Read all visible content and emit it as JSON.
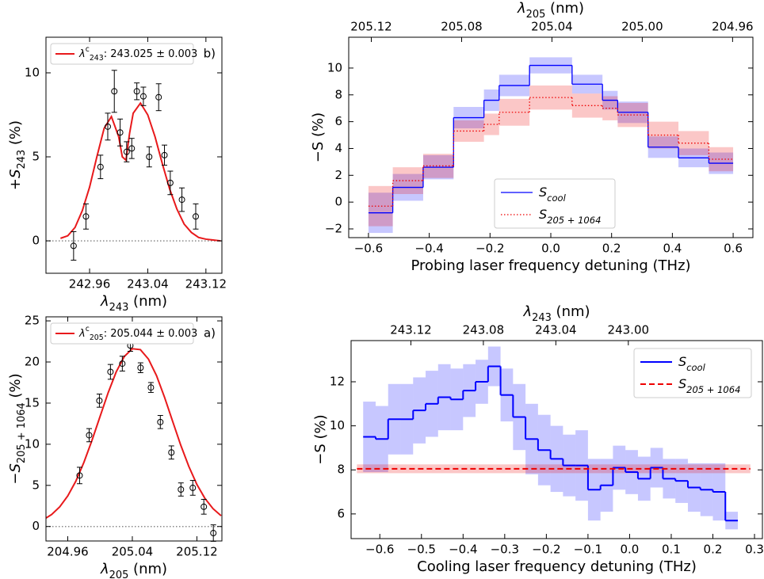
{
  "chart_data": [
    {
      "type": "scatter_fit",
      "panel_label": "b)",
      "xlabel": [
        {
          "text": "λ",
          "italic": true
        },
        {
          "text": "243",
          "shift": "sub"
        },
        {
          "text": " (nm)"
        }
      ],
      "ylabel": [
        {
          "text": "+"
        },
        {
          "text": "S",
          "italic": true
        },
        {
          "text": "243",
          "shift": "sub"
        },
        {
          "text": " (%)"
        }
      ],
      "xlim": [
        242.9,
        243.142
      ],
      "ylim": [
        -1.93,
        12.12
      ],
      "xticks": [
        242.96,
        243.04,
        243.12
      ],
      "yticks": [
        0,
        5,
        10
      ],
      "zero_line": true,
      "legend": "upper left",
      "points": {
        "color": "#000000",
        "x": [
          242.938,
          242.955,
          242.975,
          242.985,
          242.994,
          243.002,
          243.011,
          243.018,
          243.025,
          243.034,
          243.042,
          243.055,
          243.063,
          243.071,
          243.087,
          243.106
        ],
        "values": [
          -0.3,
          1.45,
          4.4,
          6.8,
          8.9,
          6.45,
          5.3,
          5.5,
          8.9,
          8.6,
          5.0,
          8.55,
          5.1,
          3.45,
          2.45,
          1.45
        ],
        "errors": [
          0.85,
          0.75,
          0.7,
          0.8,
          1.25,
          0.8,
          0.6,
          0.6,
          0.5,
          0.55,
          0.6,
          0.8,
          0.6,
          0.7,
          0.7,
          0.75
        ]
      },
      "fit": {
        "color": "#e8191b",
        "name": [
          {
            "text": "λ",
            "italic": true
          },
          {
            "text": "c",
            "shift": "super"
          },
          {
            "text": "243",
            "shift": "sub"
          },
          {
            "text": ": 243.025 ± 0.003"
          }
        ],
        "x": [
          242.92,
          242.93,
          242.94,
          242.95,
          242.96,
          242.97,
          242.98,
          242.99,
          243.0,
          243.005,
          243.01,
          243.015,
          243.02,
          243.03,
          243.04,
          243.05,
          243.06,
          243.07,
          243.08,
          243.09,
          243.1,
          243.11,
          243.12,
          243.13,
          243.14
        ],
        "values": [
          0.15,
          0.3,
          0.8,
          1.8,
          3.2,
          5.0,
          6.7,
          7.4,
          6.2,
          5.0,
          4.8,
          6.4,
          7.6,
          8.2,
          7.5,
          6.2,
          4.6,
          3.1,
          1.9,
          1.0,
          0.5,
          0.2,
          0.1,
          0.05,
          0.0
        ]
      }
    },
    {
      "type": "scatter_fit",
      "panel_label": "a)",
      "xlabel": [
        {
          "text": "λ",
          "italic": true
        },
        {
          "text": "205",
          "shift": "sub"
        },
        {
          "text": " (nm)"
        }
      ],
      "ylabel": [
        {
          "text": "−"
        },
        {
          "text": "S",
          "italic": true
        },
        {
          "text": "205 + 1064",
          "shift": "sub"
        },
        {
          "text": " (%)"
        }
      ],
      "xlim": [
        204.933,
        205.151
      ],
      "ylim": [
        -1.76,
        25.49
      ],
      "xticks": [
        204.96,
        205.04,
        205.12
      ],
      "yticks": [
        0,
        5,
        10,
        15,
        20,
        25
      ],
      "zero_line": true,
      "legend": "upper left",
      "points": {
        "color": "#000000",
        "x": [
          204.9747,
          204.9865,
          204.9992,
          205.0129,
          205.0276,
          205.0375,
          205.0502,
          205.063,
          205.0747,
          205.0884,
          205.1002,
          205.1149,
          205.1286,
          205.1404
        ],
        "values": [
          6.2,
          11.1,
          15.3,
          18.8,
          19.8,
          22.0,
          19.3,
          16.9,
          12.7,
          9.0,
          4.5,
          4.7,
          2.4,
          -0.8
        ],
        "errors": [
          1.0,
          0.8,
          0.8,
          0.9,
          0.9,
          0.7,
          0.6,
          0.6,
          0.8,
          0.8,
          0.8,
          0.9,
          0.9,
          1.0
        ]
      },
      "fit": {
        "color": "#e8191b",
        "name": [
          {
            "text": "λ",
            "italic": true
          },
          {
            "text": "c",
            "shift": "super"
          },
          {
            "text": "205",
            "shift": "sub"
          },
          {
            "text": ": 205.044 ± 0.003"
          }
        ],
        "x": [
          204.93,
          204.94,
          204.95,
          204.96,
          204.97,
          204.98,
          204.99,
          205.0,
          205.01,
          205.02,
          205.03,
          205.04,
          205.05,
          205.06,
          205.07,
          205.08,
          205.09,
          205.1,
          205.11,
          205.12,
          205.13,
          205.14,
          205.15
        ],
        "values": [
          0.84,
          1.46,
          2.38,
          3.72,
          5.51,
          7.8,
          10.47,
          13.37,
          16.25,
          18.79,
          20.66,
          21.61,
          21.5,
          20.35,
          18.34,
          15.69,
          12.77,
          9.89,
          7.3,
          5.11,
          3.41,
          2.17,
          1.31
        ]
      }
    },
    {
      "type": "step_band",
      "xlabel": [
        {
          "text": "Probing laser frequency detuning (THz)"
        }
      ],
      "ylabel": [
        {
          "text": "−S (%)"
        }
      ],
      "x2label": [
        {
          "text": "λ",
          "italic": true
        },
        {
          "text": "205",
          "shift": "sub"
        },
        {
          "text": " (nm)"
        }
      ],
      "xlim": [
        -0.665,
        0.665
      ],
      "ylim": [
        -2.65,
        12.3
      ],
      "x2lim": [
        205.13,
        204.951
      ],
      "xticks": [
        {
          "value": -0.6,
          "label": "−0.6"
        },
        {
          "value": -0.4,
          "label": "−0.4"
        },
        {
          "value": -0.2,
          "label": "−0.2"
        },
        {
          "value": 0,
          "label": "0.0"
        },
        0.2,
        0.4,
        0.6
      ],
      "yticks": [
        {
          "value": -2,
          "label": "−2"
        },
        0,
        2,
        4,
        6,
        8,
        10
      ],
      "x2ticks": [
        205.12,
        205.08,
        205.04,
        {
          "value": 205,
          "label": "205.00"
        },
        204.96
      ],
      "legend": "lower center",
      "series": [
        {
          "name": [
            {
              "text": "S",
              "italic": true
            },
            {
              "text": "cool",
              "shift": "sub",
              "italic": true
            }
          ],
          "color": "#0000ff",
          "style": "solid",
          "edges": [
            -0.6,
            -0.52,
            -0.42,
            -0.32,
            -0.22,
            -0.17,
            -0.07,
            0.07,
            0.17,
            0.22,
            0.32,
            0.42,
            0.52,
            0.6
          ],
          "values": [
            -0.8,
            1.1,
            2.6,
            6.3,
            7.6,
            8.7,
            10.2,
            8.8,
            7.6,
            6.7,
            4.1,
            3.3,
            2.9
          ],
          "errors": [
            1.5,
            1.0,
            0.9,
            0.8,
            0.8,
            0.8,
            0.6,
            0.7,
            0.7,
            0.8,
            0.8,
            0.7,
            0.8
          ]
        },
        {
          "name": [
            {
              "text": "S",
              "italic": true
            },
            {
              "text": "205 + 1064",
              "shift": "sub",
              "italic": true
            }
          ],
          "color": "#ee0000",
          "style": "dotted",
          "edges": [
            -0.6,
            -0.52,
            -0.42,
            -0.32,
            -0.22,
            -0.17,
            -0.07,
            0.07,
            0.17,
            0.22,
            0.32,
            0.42,
            0.52,
            0.6
          ],
          "values": [
            -0.3,
            1.6,
            2.7,
            5.3,
            5.8,
            6.7,
            7.8,
            7.2,
            7.0,
            6.5,
            5.0,
            4.4,
            3.2
          ],
          "errors": [
            1.5,
            1.0,
            0.9,
            0.8,
            0.8,
            1.0,
            0.9,
            0.9,
            0.9,
            0.9,
            1.0,
            0.9,
            0.9
          ]
        }
      ]
    },
    {
      "type": "step_band",
      "xlabel": [
        {
          "text": "Cooling laser frequency detuning (THz)"
        }
      ],
      "ylabel": [
        {
          "text": "−S (%)"
        }
      ],
      "x2label": [
        {
          "text": "λ",
          "italic": true
        },
        {
          "text": "243",
          "shift": "sub"
        },
        {
          "text": " (nm)"
        }
      ],
      "xlim": [
        -0.669,
        0.319
      ],
      "ylim": [
        4.88,
        13.87
      ],
      "x2lim": [
        243.153,
        242.926
      ],
      "xticks": [
        {
          "value": -0.6,
          "label": "−0.6"
        },
        {
          "value": -0.5,
          "label": "−0.5"
        },
        {
          "value": -0.4,
          "label": "−0.4"
        },
        {
          "value": -0.3,
          "label": "−0.3"
        },
        {
          "value": -0.2,
          "label": "−0.2"
        },
        {
          "value": -0.1,
          "label": "−0.1"
        },
        {
          "value": 0,
          "label": "0.0"
        },
        0.1,
        0.2,
        0.3
      ],
      "yticks": [
        6,
        8,
        10,
        12
      ],
      "x2ticks": [
        243.12,
        243.08,
        243.04,
        {
          "value": 243,
          "label": "243.00"
        }
      ],
      "legend": "upper right",
      "series": [
        {
          "name": [
            {
              "text": "S",
              "italic": true
            },
            {
              "text": "cool",
              "shift": "sub",
              "italic": true
            }
          ],
          "color": "#0000ff",
          "style": "solid",
          "width": 2,
          "edges": [
            -0.64,
            -0.61,
            -0.58,
            -0.55,
            -0.52,
            -0.49,
            -0.46,
            -0.43,
            -0.4,
            -0.37,
            -0.34,
            -0.31,
            -0.28,
            -0.25,
            -0.22,
            -0.19,
            -0.16,
            -0.13,
            -0.1,
            -0.07,
            -0.04,
            -0.01,
            0.02,
            0.05,
            0.08,
            0.11,
            0.14,
            0.17,
            0.2,
            0.23,
            0.26
          ],
          "values": [
            9.5,
            9.4,
            10.3,
            10.3,
            10.7,
            11.0,
            11.3,
            11.2,
            11.6,
            12.0,
            12.7,
            11.4,
            10.4,
            9.4,
            8.9,
            8.5,
            8.2,
            8.2,
            7.1,
            7.3,
            8.1,
            7.9,
            7.6,
            8.1,
            7.6,
            7.5,
            7.2,
            7.1,
            7.0,
            5.7
          ],
          "errors": [
            1.6,
            1.5,
            1.6,
            1.6,
            1.5,
            1.5,
            1.5,
            1.4,
            1.2,
            1.0,
            0.9,
            1.2,
            1.5,
            1.6,
            1.6,
            1.5,
            1.4,
            1.6,
            1.4,
            1.2,
            1.0,
            1.0,
            1.0,
            0.9,
            0.9,
            1.0,
            1.1,
            1.2,
            1.3,
            0.4
          ]
        },
        {
          "name": [
            {
              "text": "S",
              "italic": true
            },
            {
              "text": "205 + 1064",
              "shift": "sub",
              "italic": true
            }
          ],
          "color": "#ee0000",
          "style": "dashed",
          "width": 2,
          "edges": [
            -0.655,
            0.29
          ],
          "values": [
            8.05
          ],
          "errors": [
            0.2
          ]
        }
      ]
    }
  ]
}
